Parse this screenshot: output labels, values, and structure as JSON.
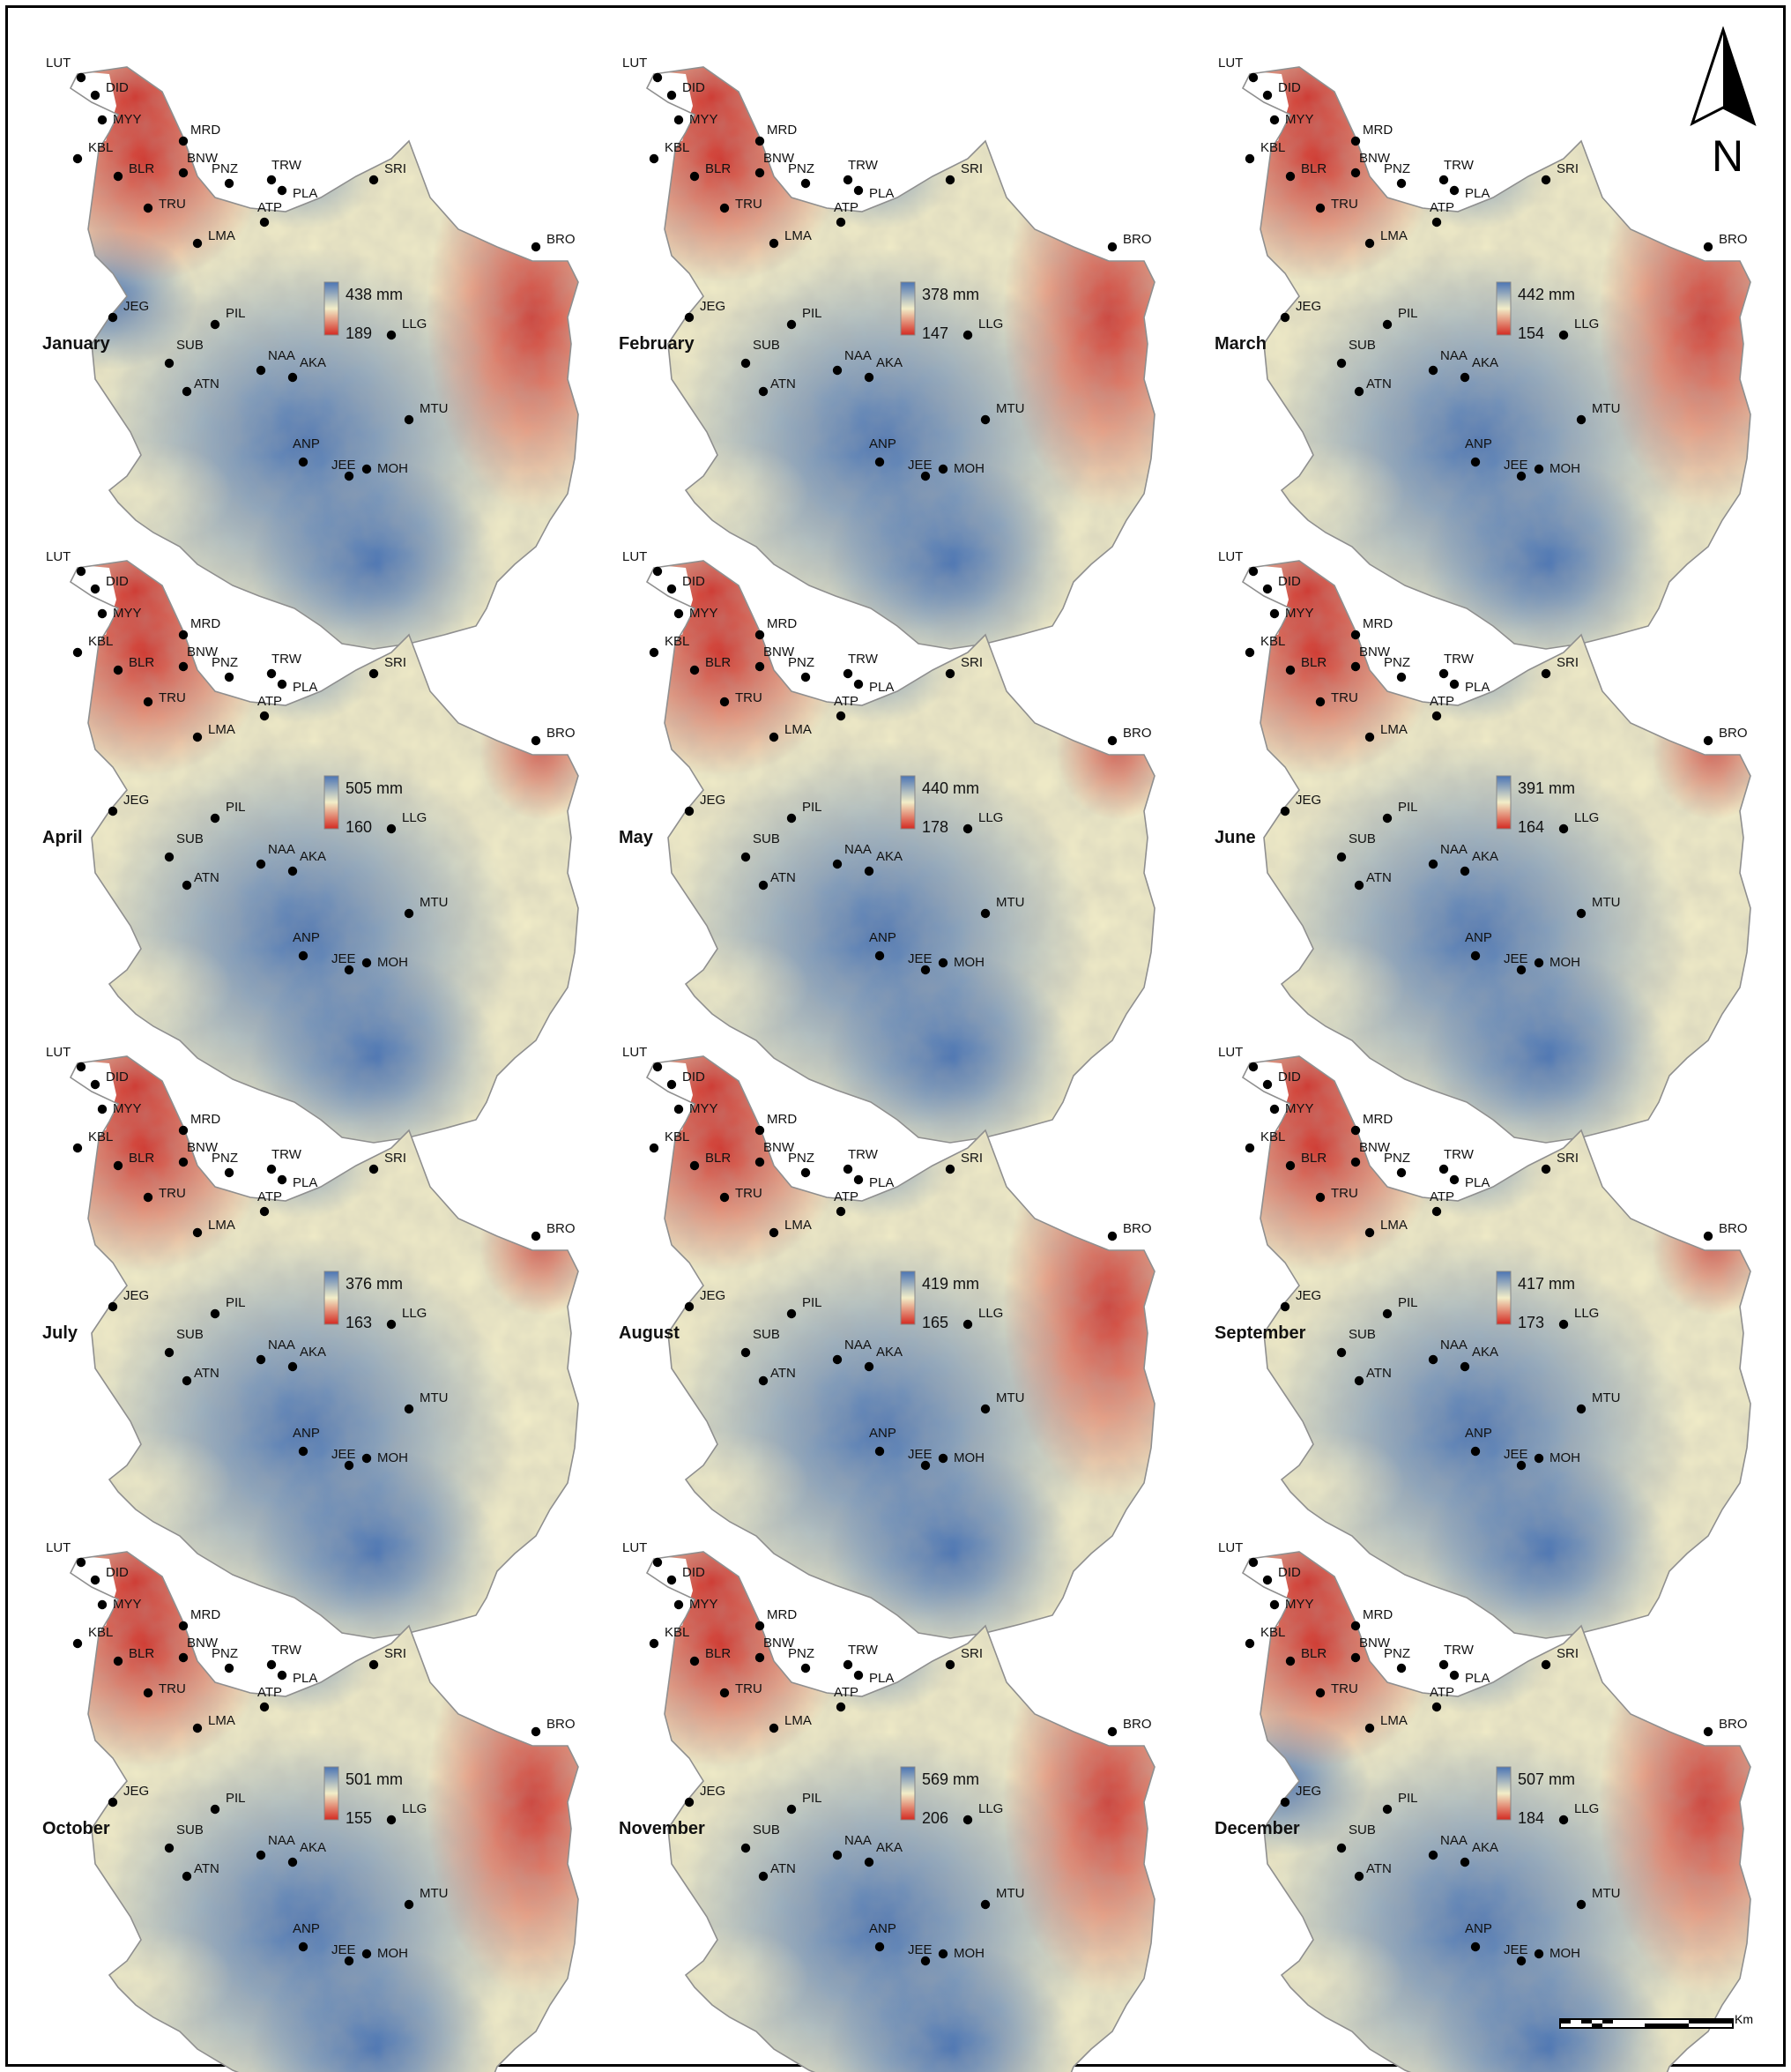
{
  "months": [
    {
      "name": "January",
      "max": "438 mm",
      "min": "189",
      "red_zone": "nw_east"
    },
    {
      "name": "February",
      "max": "378 mm",
      "min": "147",
      "red_zone": "nw_east"
    },
    {
      "name": "March",
      "max": "442 mm",
      "min": "154",
      "red_zone": "nw_east"
    },
    {
      "name": "April",
      "max": "505 mm",
      "min": "160",
      "red_zone": "nw"
    },
    {
      "name": "May",
      "max": "440 mm",
      "min": "178",
      "red_zone": "nw"
    },
    {
      "name": "June",
      "max": "391 mm",
      "min": "164",
      "red_zone": "nw"
    },
    {
      "name": "July",
      "max": "376 mm",
      "min": "163",
      "red_zone": "nw"
    },
    {
      "name": "August",
      "max": "419 mm",
      "min": "165",
      "red_zone": "nw_east"
    },
    {
      "name": "September",
      "max": "417 mm",
      "min": "173",
      "red_zone": "nw"
    },
    {
      "name": "October",
      "max": "501 mm",
      "min": "155",
      "red_zone": "nw_east"
    },
    {
      "name": "November",
      "max": "569 mm",
      "min": "206",
      "red_zone": "nw_east"
    },
    {
      "name": "December",
      "max": "507 mm",
      "min": "184",
      "red_zone": "nw_east"
    }
  ],
  "stations": [
    "LUT",
    "DID",
    "MYY",
    "MRD",
    "KBL",
    "BNW",
    "BLR",
    "PNZ",
    "TRW",
    "PLA",
    "SRI",
    "TRU",
    "ATP",
    "LMA",
    "BRO",
    "JEG",
    "PIL",
    "LLG",
    "SUB",
    "NAA",
    "AKA",
    "ATN",
    "MTU",
    "ANP",
    "MOH",
    "JEE"
  ],
  "colors": {
    "high": "#4a74b4",
    "mid": "#f2edc8",
    "low": "#d42a22",
    "terrain": "#c9ccc8"
  },
  "north_label": "N",
  "scale_unit": "Km"
}
